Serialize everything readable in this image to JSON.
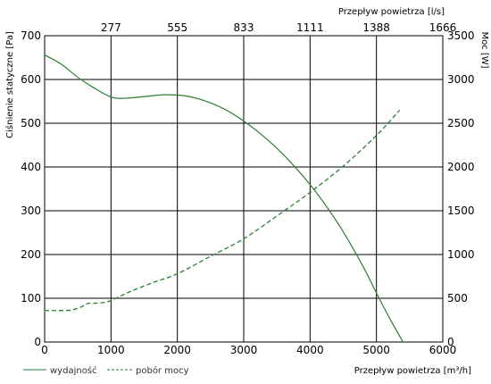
{
  "chart_data": {
    "type": "line",
    "x_bottom": {
      "label": "Przepływ powietrza [m³/h]",
      "range": [
        0,
        6000
      ],
      "ticks": [
        0,
        1000,
        2000,
        3000,
        4000,
        5000,
        6000
      ],
      "tick_labels": [
        "0",
        "1000",
        "2000",
        "3000",
        "4000",
        "5000",
        "6000"
      ]
    },
    "x_top": {
      "label": "Przepływ powietrza [l/s]",
      "tick_labels": [
        "277",
        "555",
        "833",
        "1111",
        "1388",
        "1666"
      ]
    },
    "y_left": {
      "label": "Ciśnienie statyczne [Pa]",
      "range": [
        0,
        700
      ],
      "ticks": [
        0,
        100,
        200,
        300,
        400,
        500,
        600,
        700
      ],
      "tick_labels": [
        "0",
        "100",
        "200",
        "300",
        "400",
        "500",
        "600",
        "700"
      ]
    },
    "y_right": {
      "label": "Moc [W]",
      "range": [
        0,
        3500
      ],
      "ticks": [
        0,
        500,
        1000,
        1500,
        2000,
        2500,
        3000,
        3500
      ],
      "tick_labels": [
        "0",
        "500",
        "1000",
        "1500",
        "2000",
        "2500",
        "3000",
        "3500"
      ]
    },
    "grid": true,
    "legend_position": "bottom-left",
    "series": [
      {
        "name": "wydajność",
        "axis": "left",
        "style": "solid",
        "color": "#2e7d32",
        "x": [
          0,
          250,
          500,
          750,
          1000,
          1200,
          1500,
          1800,
          2100,
          2400,
          2700,
          3000,
          3300,
          3600,
          3900,
          4200,
          4500,
          4800,
          5000,
          5200,
          5400
        ],
        "y": [
          656,
          635,
          605,
          580,
          560,
          557,
          561,
          565,
          563,
          552,
          533,
          505,
          470,
          428,
          378,
          320,
          252,
          172,
          112,
          54,
          0
        ]
      },
      {
        "name": "pobór mocy",
        "axis": "right",
        "style": "dashed",
        "color": "#2e7d32",
        "x": [
          0,
          200,
          400,
          550,
          650,
          800,
          950,
          1100,
          1300,
          1600,
          2000,
          2500,
          3000,
          3500,
          4000,
          4500,
          5000,
          5350
        ],
        "y": [
          360,
          360,
          365,
          400,
          440,
          445,
          460,
          510,
          580,
          670,
          780,
          980,
          1180,
          1440,
          1710,
          2010,
          2360,
          2650
        ]
      }
    ]
  }
}
